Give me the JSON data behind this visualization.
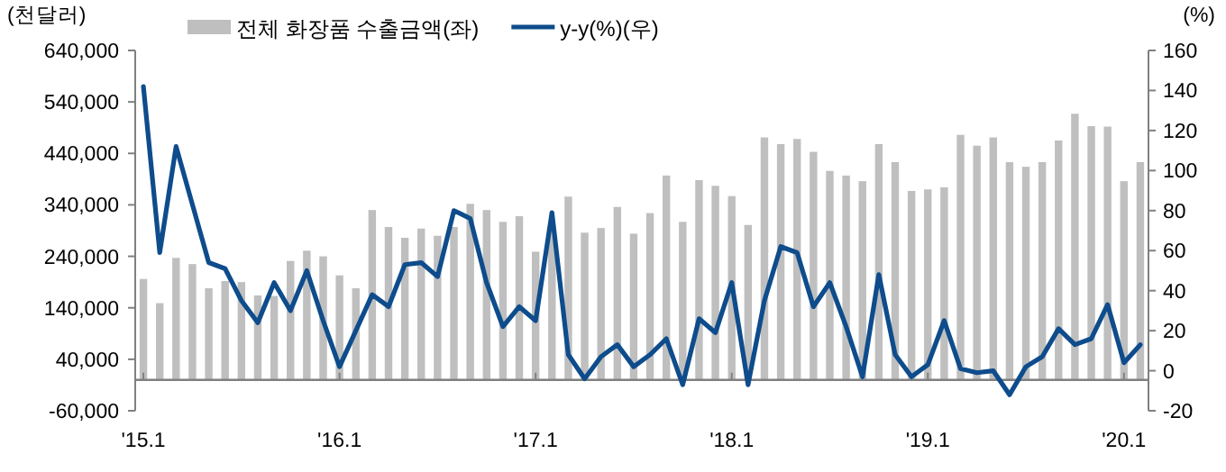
{
  "chart_data": {
    "type": "bar",
    "ylabel": "(천달러)",
    "y2label": "(%)",
    "legend": "top",
    "categories": [
      "'15.1",
      null,
      null,
      null,
      null,
      null,
      null,
      null,
      null,
      null,
      null,
      null,
      "'16.1",
      null,
      null,
      null,
      null,
      null,
      null,
      null,
      null,
      null,
      null,
      null,
      "'17.1",
      null,
      null,
      null,
      null,
      null,
      null,
      null,
      null,
      null,
      null,
      null,
      "'18.1",
      null,
      null,
      null,
      null,
      null,
      null,
      null,
      null,
      null,
      null,
      null,
      "'19.1",
      null,
      null,
      null,
      null,
      null,
      null,
      null,
      null,
      null,
      null,
      null,
      "'20.1",
      null
    ],
    "series": [
      {
        "name": "전체 화장품 수출금액(좌)",
        "color": "#bfbfbf",
        "values": [
          196000,
          149000,
          237000,
          225000,
          178000,
          192000,
          190000,
          164000,
          163000,
          231000,
          251000,
          240000,
          203000,
          178000,
          330000,
          297000,
          276000,
          294000,
          280000,
          297000,
          342000,
          330000,
          307000,
          318000,
          249000,
          300000,
          356000,
          286000,
          295000,
          336000,
          284000,
          324000,
          397000,
          307000,
          388000,
          377000,
          357000,
          301000,
          471000,
          458000,
          468000,
          443000,
          406000,
          397000,
          386000,
          458000,
          423000,
          367000,
          370000,
          374000,
          476000,
          455000,
          471000,
          423000,
          414000,
          423000,
          465000,
          517000,
          493000,
          492000,
          386000,
          423000
        ]
      },
      {
        "name": "y-y(%)(우)",
        "type": "line",
        "axis": "y2",
        "color": "#0e4c8c",
        "values": [
          142,
          59,
          112,
          83,
          54,
          51,
          35,
          24,
          44,
          30,
          50,
          25,
          2,
          20,
          38,
          32,
          53,
          54,
          47,
          80,
          76,
          44,
          22,
          32,
          25,
          79,
          8,
          -4,
          7,
          13,
          2,
          8,
          16,
          -7,
          26,
          19,
          44,
          -7,
          35,
          62,
          59,
          32,
          44,
          22,
          -3,
          48,
          8,
          -3,
          3,
          25,
          1,
          -1,
          0,
          -12,
          2,
          7,
          21,
          13,
          16,
          33,
          4,
          13
        ]
      }
    ],
    "ylim": [
      -60000,
      640000
    ],
    "yticks": [
      {
        "value": -60000,
        "label": "-60,000"
      },
      {
        "value": 40000,
        "label": "40,000"
      },
      {
        "value": 140000,
        "label": "140,000"
      },
      {
        "value": 240000,
        "label": "240,000"
      },
      {
        "value": 340000,
        "label": "340,000"
      },
      {
        "value": 440000,
        "label": "440,000"
      },
      {
        "value": 540000,
        "label": "540,000"
      },
      {
        "value": 640000,
        "label": "640,000"
      }
    ],
    "y2lim": [
      -20,
      160
    ],
    "y2ticks": [
      -20,
      0,
      20,
      40,
      60,
      80,
      100,
      120,
      140,
      160
    ]
  }
}
